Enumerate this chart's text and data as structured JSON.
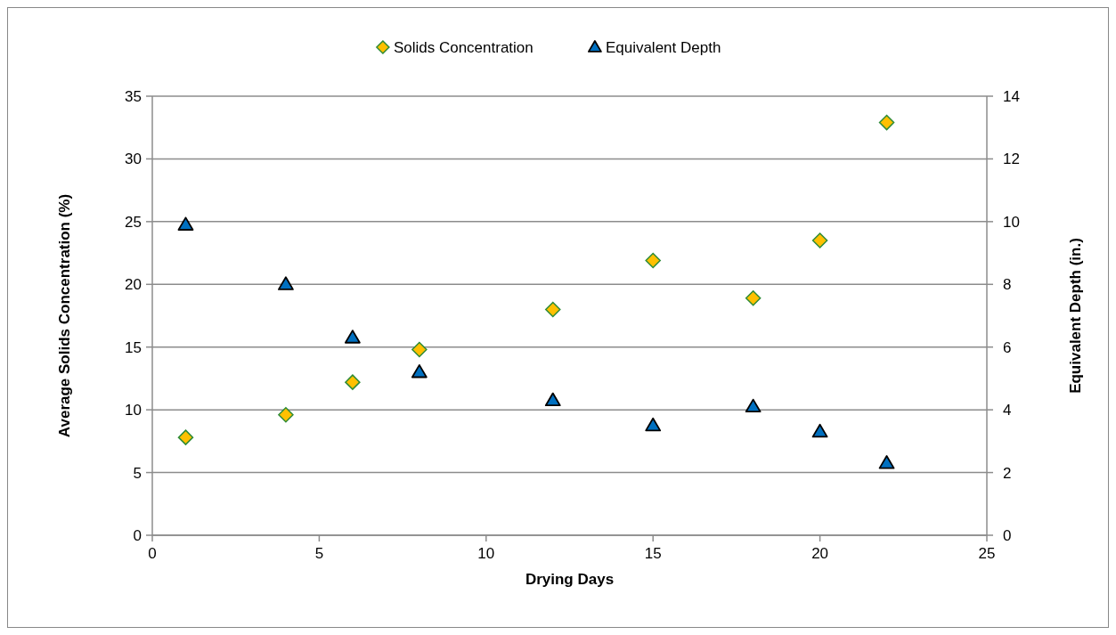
{
  "chart_data": {
    "type": "scatter",
    "xlabel": "Drying Days",
    "ylabel": "Average Solids Concentration (%)",
    "y2label": "Equivalent Depth (in.)",
    "xlim": [
      0,
      25
    ],
    "xticks": [
      0,
      5,
      10,
      15,
      20,
      25
    ],
    "ylim": [
      0,
      35
    ],
    "yticks": [
      0,
      5,
      10,
      15,
      20,
      25,
      30,
      35
    ],
    "y2lim": [
      0,
      14
    ],
    "y2ticks": [
      0,
      2,
      4,
      6,
      8,
      10,
      12,
      14
    ],
    "grid": "y",
    "legend": "top",
    "series": [
      {
        "name": "Solids Concentration",
        "color": "#ffc000",
        "marker": "diamond",
        "x": [
          1,
          4,
          6,
          8,
          12,
          15,
          18,
          20,
          22
        ],
        "values": [
          7.8,
          9.6,
          12.2,
          14.8,
          18.0,
          21.9,
          18.9,
          23.5,
          32.9
        ]
      },
      {
        "name": "Equivalent Depth",
        "color": "#0070c0",
        "marker": "triangle",
        "axis": "y2",
        "x": [
          1,
          4,
          6,
          8,
          12,
          15,
          18,
          20,
          22
        ],
        "values": [
          9.9,
          8.0,
          6.3,
          5.2,
          4.3,
          3.5,
          4.1,
          3.3,
          2.3
        ]
      }
    ]
  }
}
